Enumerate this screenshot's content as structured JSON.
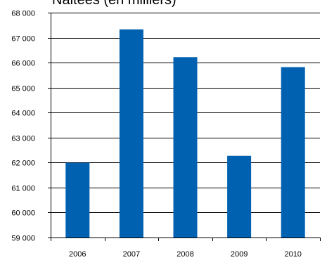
{
  "chart_data": {
    "type": "bar",
    "title": "Naitées (en milliers)",
    "categories": [
      "2006",
      "2007",
      "2008",
      "2009",
      "2010"
    ],
    "values": [
      61990,
      67330,
      66220,
      62270,
      65820
    ],
    "ylim": [
      59000,
      68000
    ],
    "yticks": [
      59000,
      60000,
      61000,
      62000,
      63000,
      64000,
      65000,
      66000,
      67000,
      68000
    ],
    "ytick_labels": [
      "59 000",
      "60 000",
      "61 000",
      "62 000",
      "63 000",
      "64 000",
      "65 000",
      "66 000",
      "67 000",
      "68 000"
    ],
    "grid": true,
    "bar_color": "#0061b0",
    "grid_color": "#000000"
  }
}
